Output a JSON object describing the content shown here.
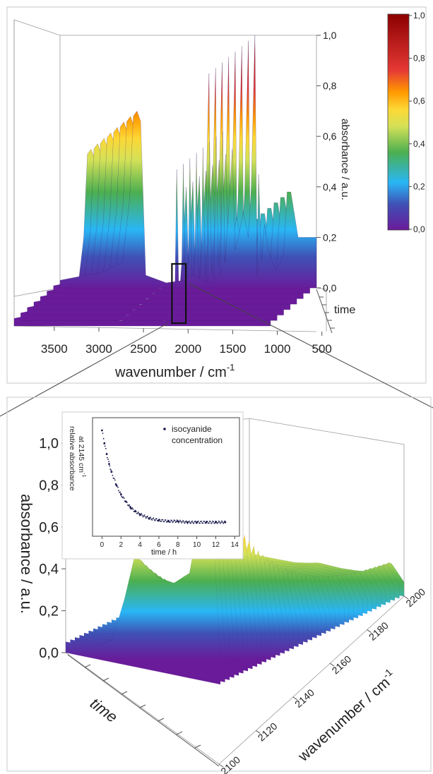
{
  "chart_data": [
    {
      "type": "surface3d",
      "panel": "top",
      "x_axis": {
        "label": "wavenumber / cm",
        "label_sup": "-1",
        "ticks": [
          3500,
          3000,
          2500,
          2000,
          1500,
          1000,
          500
        ],
        "range": [
          3950,
          450
        ],
        "tick_labels": [
          "3500",
          "3000",
          "2500",
          "2000",
          "1500",
          "1000",
          "500"
        ]
      },
      "z_axis": {
        "label": "absorbance / a.u.",
        "ticks": [
          0.0,
          0.2,
          0.4,
          0.6,
          0.8,
          1.0
        ],
        "tick_labels": [
          "0,0",
          "0,2",
          "0,4",
          "0,6",
          "0,8",
          "1,0"
        ],
        "range": [
          0,
          1.0
        ]
      },
      "depth_axis": {
        "label": "time"
      },
      "colorbar": {
        "tick_labels": [
          "1,0",
          "0,8",
          "0,6",
          "0,4",
          "0,2",
          "0,0"
        ],
        "colors": [
          "#6a1b9a",
          "#3f51b5",
          "#29b6f6",
          "#4caf50",
          "#d4e157",
          "#fdd835",
          "#ff9800",
          "#e53935",
          "#8b0000"
        ]
      },
      "spectrum": [
        [
          3950,
          0.03
        ],
        [
          3600,
          0.05
        ],
        [
          3400,
          0.06
        ],
        [
          3100,
          0.1
        ],
        [
          3000,
          0.35
        ],
        [
          2950,
          0.68
        ],
        [
          2900,
          0.7
        ],
        [
          2850,
          0.66
        ],
        [
          2780,
          0.05
        ],
        [
          2500,
          0.02
        ],
        [
          2250,
          0.03
        ],
        [
          2145,
          0.05
        ],
        [
          2080,
          0.04
        ],
        [
          1900,
          0.02
        ],
        [
          1760,
          0.05
        ],
        [
          1730,
          0.62
        ],
        [
          1700,
          0.1
        ],
        [
          1650,
          0.3
        ],
        [
          1600,
          0.55
        ],
        [
          1560,
          0.15
        ],
        [
          1500,
          0.22
        ],
        [
          1450,
          0.3
        ],
        [
          1380,
          0.2
        ],
        [
          1340,
          0.4
        ],
        [
          1290,
          1.0
        ],
        [
          1260,
          0.05
        ],
        [
          1240,
          0.45
        ],
        [
          1200,
          0.1
        ],
        [
          1160,
          0.25
        ],
        [
          1110,
          0.15
        ],
        [
          1050,
          0.1
        ],
        [
          1000,
          0.07
        ],
        [
          900,
          0.13
        ],
        [
          850,
          0.38
        ],
        [
          800,
          0.38
        ],
        [
          700,
          0.2
        ]
      ],
      "highlight_box": {
        "x_range": [
          2230,
          2040
        ],
        "label": ""
      }
    },
    {
      "type": "surface3d",
      "panel": "bottom",
      "x_axis": {
        "label": "wavenumber / cm",
        "label_sup": "-1",
        "ticks": [
          2100,
          2120,
          2140,
          2160,
          2180,
          2200
        ],
        "tick_labels": [
          "2100",
          "2120",
          "2140",
          "2160",
          "2180",
          "2200"
        ]
      },
      "z_axis": {
        "label": "absorbance / a.u.",
        "ticks": [
          0.0,
          0.2,
          0.4,
          0.6,
          0.8,
          1.0
        ],
        "tick_labels": [
          "0,0",
          "0,2",
          "0,4",
          "0,6",
          "0,8",
          "1,0"
        ],
        "range": [
          0,
          1.0
        ]
      },
      "depth_axis": {
        "label": "time"
      },
      "spectrum_first": [
        [
          2100,
          0.05
        ],
        [
          2110,
          0.05
        ],
        [
          2120,
          0.06
        ],
        [
          2130,
          0.1
        ],
        [
          2138,
          0.3
        ],
        [
          2145,
          0.52
        ],
        [
          2150,
          0.48
        ],
        [
          2160,
          0.43
        ],
        [
          2170,
          0.42
        ],
        [
          2180,
          0.48
        ],
        [
          2188,
          0.8
        ],
        [
          2192,
          1.0
        ],
        [
          2196,
          0.6
        ],
        [
          2200,
          0.15
        ]
      ],
      "spectrum_last": [
        [
          2100,
          0.05
        ],
        [
          2130,
          0.05
        ],
        [
          2160,
          0.05
        ],
        [
          2180,
          0.06
        ],
        [
          2190,
          0.1
        ],
        [
          2200,
          0.06
        ]
      ]
    },
    {
      "type": "scatter",
      "panel": "inset",
      "x_axis": {
        "label": "time / h",
        "ticks": [
          0,
          2,
          4,
          6,
          8,
          10,
          12,
          14
        ],
        "tick_labels": [
          "0",
          "2",
          "4",
          "6",
          "8",
          "10",
          "12",
          "14"
        ],
        "range": [
          -1,
          14.5
        ]
      },
      "y_axis": {
        "label_line1": "relative absorbance",
        "label_line2": "at 2145 cm",
        "label_sup": "-1"
      },
      "legend": {
        "label_line1": "isocyanide",
        "label_line2": "concentration",
        "placement": "top-right"
      },
      "series": [
        {
          "points": [
            [
              0.0,
              1.0
            ],
            [
              0.25,
              0.87
            ],
            [
              0.5,
              0.76
            ],
            [
              0.75,
              0.66
            ],
            [
              1.0,
              0.58
            ],
            [
              1.5,
              0.45
            ],
            [
              2.0,
              0.35
            ],
            [
              2.5,
              0.28
            ],
            [
              3.0,
              0.22
            ],
            [
              3.5,
              0.18
            ],
            [
              4.0,
              0.15
            ],
            [
              5.0,
              0.11
            ],
            [
              6.0,
              0.09
            ],
            [
              7.0,
              0.08
            ],
            [
              8.0,
              0.08
            ],
            [
              9.0,
              0.07
            ],
            [
              10.0,
              0.07
            ],
            [
              11.0,
              0.07
            ],
            [
              12.0,
              0.07
            ],
            [
              13.0,
              0.07
            ]
          ]
        }
      ]
    }
  ]
}
